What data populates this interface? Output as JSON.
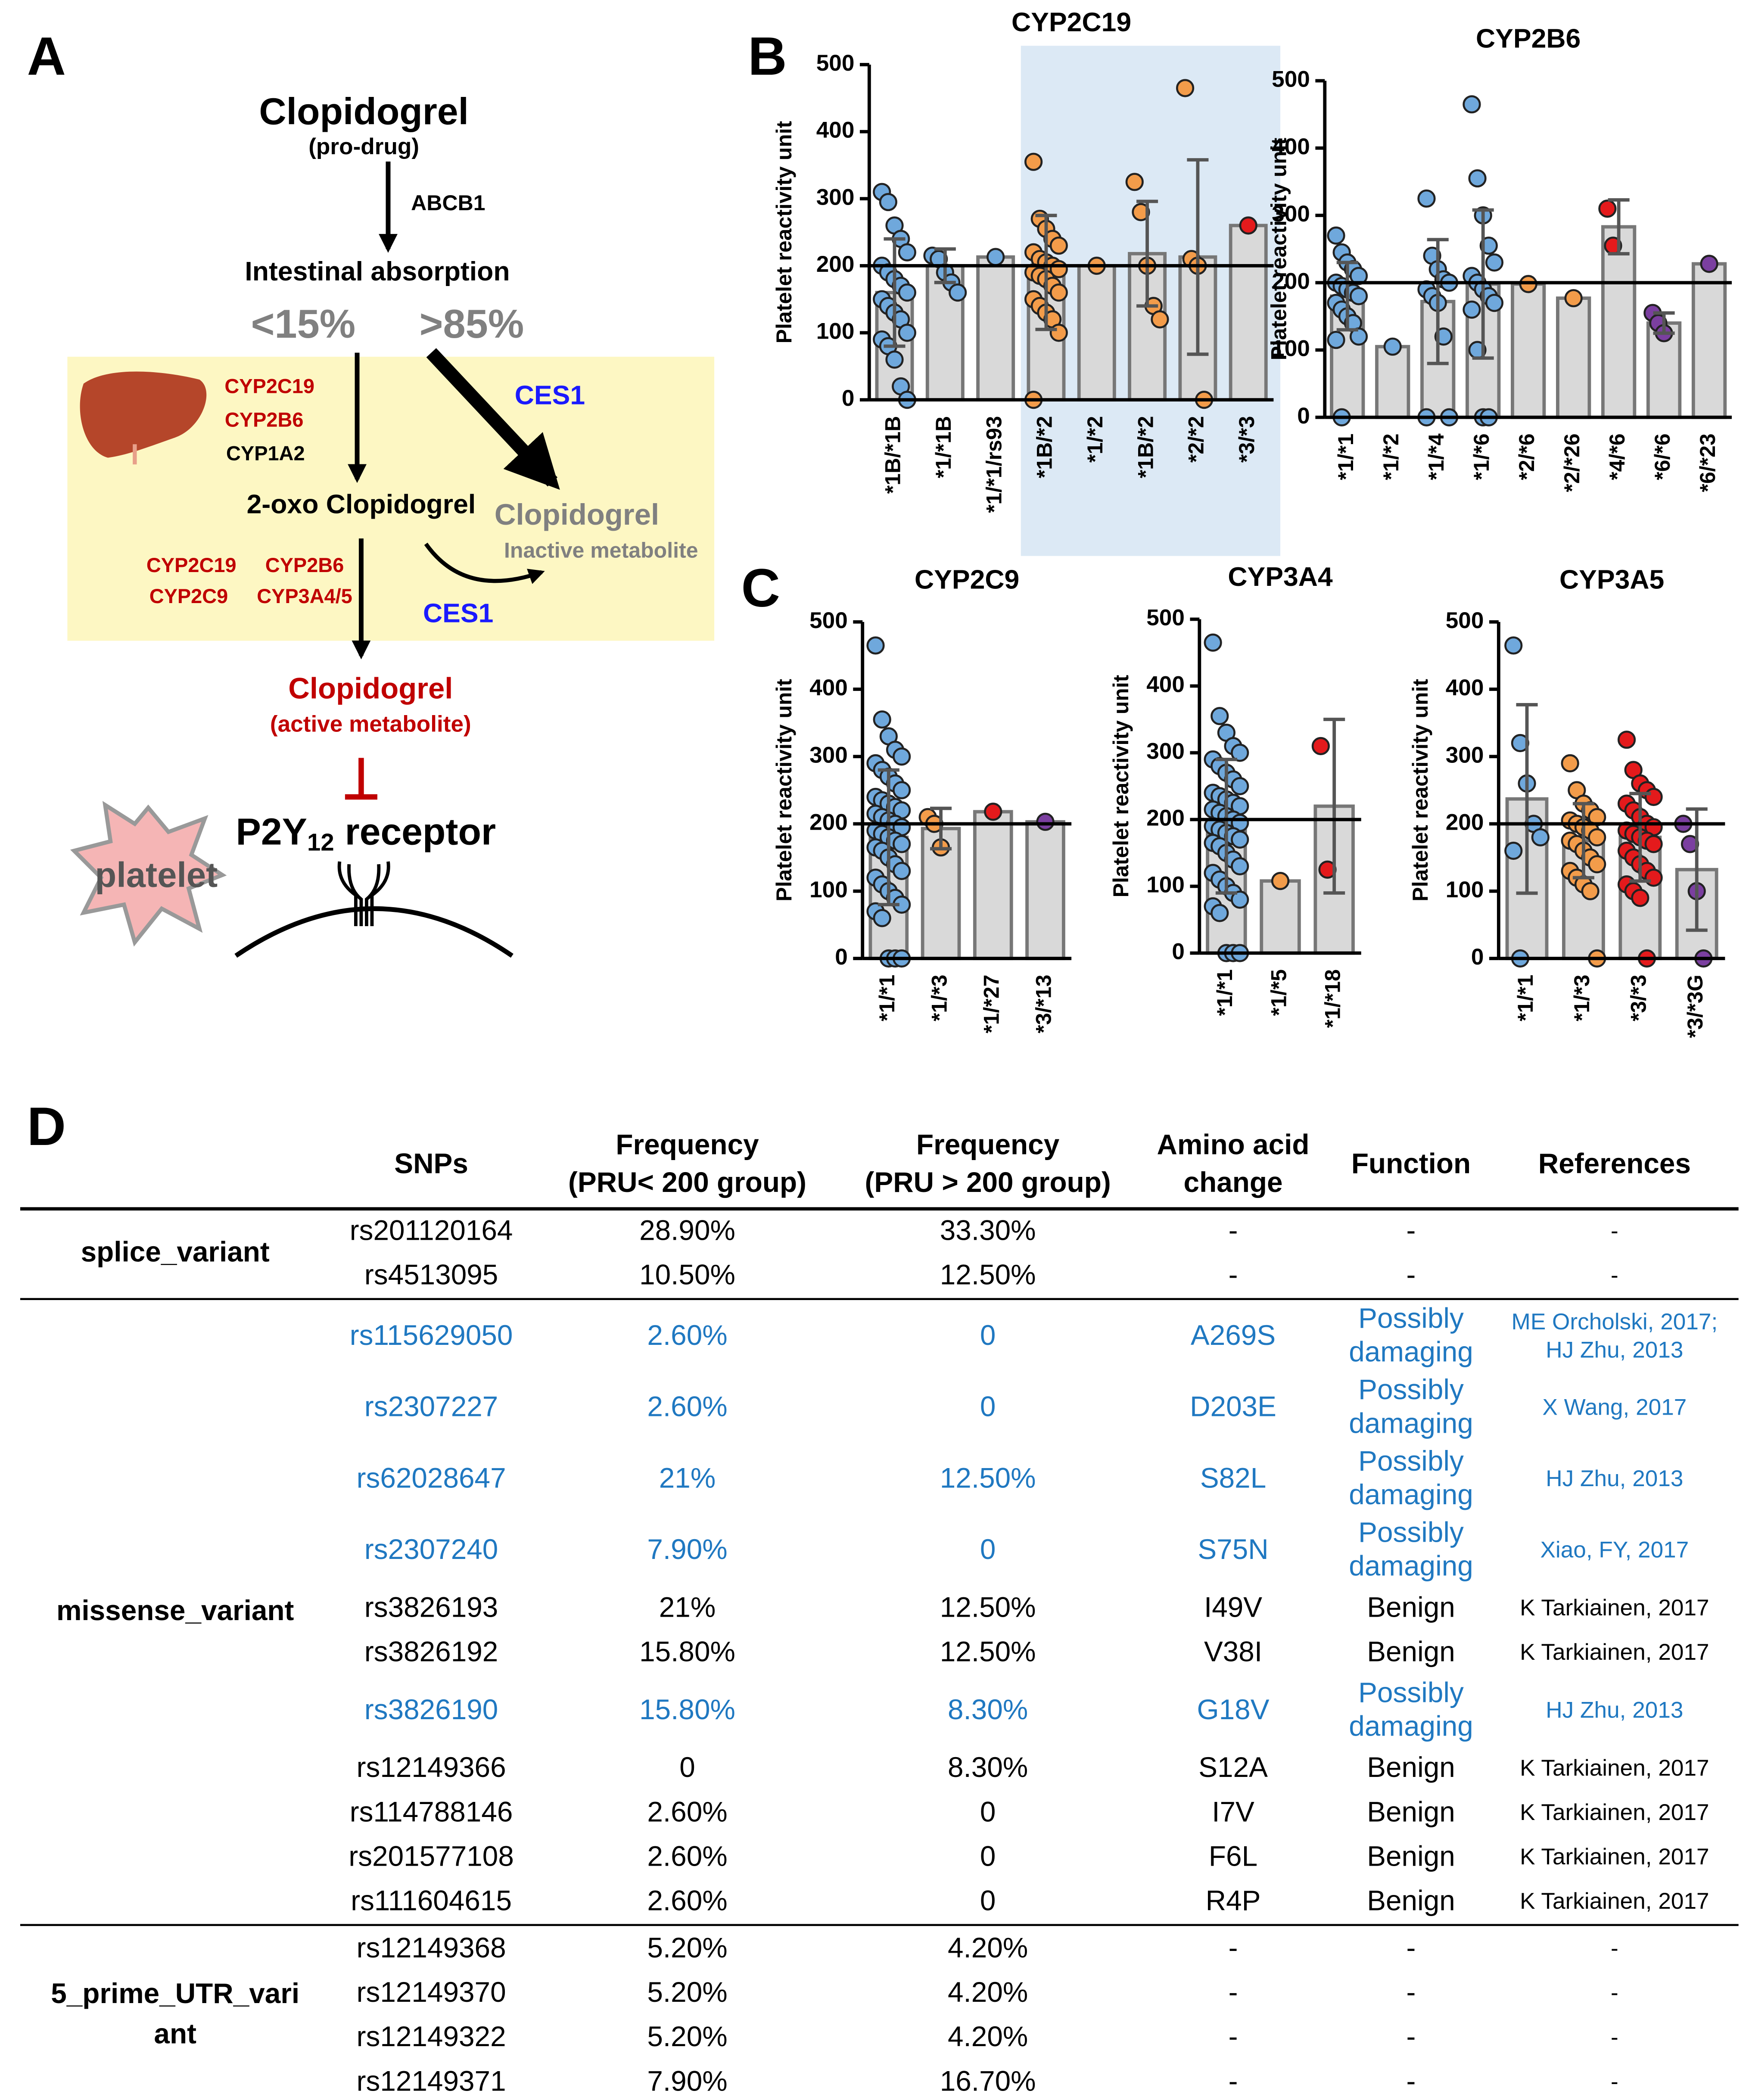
{
  "panel_labels": {
    "a": "A",
    "b": "B",
    "c": "C",
    "d": "D"
  },
  "diagram": {
    "drug": "Clopidogrel",
    "drug_note": "(pro-drug)",
    "transporter": "ABCB1",
    "absorption": "Intestinal absorption",
    "low_fraction": "<15%",
    "high_fraction": ">85%",
    "liver_enzymes": [
      "CYP2C19",
      "CYP2B6",
      "CYP1A2"
    ],
    "esterase_1": "CES1",
    "intermediate": "2-oxo Clopidogrel",
    "inactive": "Clopidogrel",
    "inactive_note": "Inactive metabolite",
    "second_enzymes": [
      "CYP2C19",
      "CYP2B6",
      "CYP2C9",
      "CYP3A4/5"
    ],
    "esterase_2": "CES1",
    "active": "Clopidogrel",
    "active_note": "(active metabolite)",
    "receptor": {
      "base": "P2Y",
      "subscript": "12",
      "suffix": "receptor"
    },
    "cell": "platelet"
  },
  "chart_data": [
    {
      "type": "bar",
      "title": "CYP2C19",
      "y_label": "Platelet reactivity unit",
      "categories": [
        "*1B/*1B",
        "*1/*1B",
        "*1/*1/rs93",
        "*1B/*2",
        "*1/*2",
        "*1B/*2",
        "*2/*2",
        "*3/*3"
      ],
      "values": [
        160,
        200,
        213,
        190,
        200,
        218,
        213,
        260
      ],
      "errors": [
        80,
        25,
        null,
        85,
        null,
        78,
        145,
        null
      ],
      "points": [
        [
          310,
          295,
          260,
          240,
          220,
          200,
          190,
          180,
          170,
          160,
          150,
          140,
          130,
          120,
          100,
          90,
          80,
          60,
          20,
          0
        ],
        [
          215,
          210,
          190,
          175,
          160
        ],
        [
          213
        ],
        [
          355,
          270,
          255,
          240,
          230,
          220,
          210,
          205,
          200,
          195,
          190,
          185,
          180,
          170,
          160,
          150,
          140,
          130,
          120,
          100,
          0
        ],
        [
          200
        ],
        [
          325,
          280,
          200,
          140,
          120
        ],
        [
          465,
          210,
          200,
          0
        ],
        [
          260
        ]
      ],
      "point_colors": [
        "#6fa8dc",
        "#6fa8dc",
        "#6fa8dc",
        "#f39c4a",
        "#f39c4a",
        "#f39c4a",
        "#f39c4a",
        "#e41a1c"
      ],
      "bar_color": "#d9d9d9",
      "reference_line": 200,
      "ylim": [
        0,
        500
      ],
      "yticks": [
        0,
        100,
        200,
        300,
        400,
        500
      ],
      "highlight": [
        3,
        7
      ],
      "highlight_color": "#dce9f5"
    },
    {
      "type": "bar",
      "title": "CYP2B6",
      "y_label": "Platelet reactivity unit",
      "categories": [
        "*1/*1",
        "*1/*2",
        "*1/*4",
        "*1/*6",
        "*2/*6",
        "*2/*26",
        "*4/*6",
        "*6/*6",
        "*6/*23"
      ],
      "values": [
        180,
        105,
        172,
        198,
        198,
        177,
        283,
        140,
        228
      ],
      "errors": [
        50,
        null,
        92,
        110,
        null,
        null,
        40,
        15,
        null
      ],
      "points": [
        [
          270,
          245,
          230,
          220,
          210,
          200,
          195,
          190,
          185,
          180,
          170,
          160,
          150,
          140,
          120,
          115,
          0
        ],
        [
          105
        ],
        [
          325,
          240,
          220,
          205,
          200,
          190,
          180,
          170,
          120,
          0,
          0
        ],
        [
          465,
          355,
          300,
          255,
          230,
          210,
          200,
          190,
          180,
          170,
          160,
          100,
          0,
          0
        ],
        [
          198
        ],
        [
          177
        ],
        [
          310,
          255
        ],
        [
          155,
          140,
          125
        ],
        [
          228
        ]
      ],
      "point_colors": [
        "#6fa8dc",
        "#6fa8dc",
        "#6fa8dc",
        "#6fa8dc",
        "#f39c4a",
        "#f39c4a",
        "#e41a1c",
        "#7b3fa0",
        "#7b3fa0"
      ],
      "bar_color": "#d9d9d9",
      "reference_line": 200,
      "ylim": [
        0,
        500
      ],
      "yticks": [
        0,
        100,
        200,
        300,
        400,
        500
      ]
    },
    {
      "type": "bar",
      "title": "CYP2C9",
      "y_label": "Platelet reactivity unit",
      "categories": [
        "*1/*1",
        "*1/*3",
        "*1/*27",
        "*3/*13"
      ],
      "values": [
        180,
        193,
        218,
        203
      ],
      "errors": [
        100,
        30,
        null,
        null
      ],
      "points": [
        [
          465,
          355,
          330,
          310,
          300,
          290,
          280,
          270,
          260,
          250,
          240,
          235,
          230,
          225,
          220,
          215,
          210,
          205,
          200,
          195,
          190,
          185,
          180,
          175,
          170,
          165,
          160,
          150,
          140,
          130,
          120,
          110,
          100,
          90,
          80,
          70,
          60,
          0,
          0,
          0
        ],
        [
          210,
          200,
          165
        ],
        [
          218
        ],
        [
          203
        ]
      ],
      "point_colors": [
        "#6fa8dc",
        "#f39c4a",
        "#e41a1c",
        "#7b3fa0"
      ],
      "bar_color": "#d9d9d9",
      "reference_line": 200,
      "ylim": [
        0,
        500
      ],
      "yticks": [
        0,
        100,
        200,
        300,
        400,
        500
      ]
    },
    {
      "type": "bar",
      "title": "CYP3A4",
      "y_label": "Platelet reactivity unit",
      "categories": [
        "*1/*1",
        "*1/*5",
        "*1/*18"
      ],
      "values": [
        190,
        108,
        220
      ],
      "errors": [
        100,
        null,
        130
      ],
      "points": [
        [
          465,
          355,
          330,
          310,
          300,
          290,
          280,
          270,
          260,
          250,
          240,
          235,
          230,
          225,
          220,
          215,
          210,
          205,
          200,
          195,
          190,
          185,
          180,
          175,
          170,
          165,
          160,
          150,
          140,
          130,
          120,
          110,
          100,
          90,
          80,
          70,
          60,
          0,
          0,
          0
        ],
        [
          108
        ],
        [
          310,
          125
        ]
      ],
      "point_colors": [
        "#6fa8dc",
        "#f39c4a",
        "#e41a1c"
      ],
      "bar_color": "#d9d9d9",
      "reference_line": 200,
      "ylim": [
        0,
        500
      ],
      "yticks": [
        0,
        100,
        200,
        300,
        400,
        500
      ]
    },
    {
      "type": "bar",
      "title": "CYP3A5",
      "y_label": "Platelet reactivity unit",
      "categories": [
        "*1/*1",
        "*1/*3",
        "*3/*3",
        "*3/*3G"
      ],
      "values": [
        237,
        175,
        180,
        132
      ],
      "errors": [
        140,
        55,
        65,
        90
      ],
      "points": [
        [
          465,
          320,
          260,
          200,
          180,
          160,
          0
        ],
        [
          290,
          250,
          230,
          220,
          210,
          205,
          200,
          195,
          190,
          180,
          175,
          170,
          160,
          150,
          140,
          130,
          120,
          110,
          100,
          0
        ],
        [
          325,
          280,
          260,
          250,
          240,
          230,
          220,
          210,
          200,
          195,
          190,
          185,
          180,
          175,
          170,
          160,
          150,
          140,
          130,
          120,
          110,
          100,
          90,
          0
        ],
        [
          200,
          170,
          100,
          0
        ]
      ],
      "point_colors": [
        "#6fa8dc",
        "#f39c4a",
        "#e41a1c",
        "#7b3fa0"
      ],
      "bar_color": "#d9d9d9",
      "reference_line": 200,
      "ylim": [
        0,
        500
      ],
      "yticks": [
        0,
        100,
        200,
        300,
        400,
        500
      ]
    }
  ],
  "table": {
    "columns": [
      "SNPs",
      [
        "Frequency",
        "(PRU< 200 group)"
      ],
      [
        "Frequency",
        "(PRU > 200 group)"
      ],
      [
        "Amino acid",
        "change"
      ],
      "Function",
      "References"
    ],
    "groups": [
      {
        "label": "splice_variant",
        "rows": [
          {
            "color": "#000000",
            "cells": [
              "rs201120164",
              "28.90%",
              "33.30%",
              "-",
              "-",
              "-"
            ]
          },
          {
            "color": "#000000",
            "cells": [
              "rs4513095",
              "10.50%",
              "12.50%",
              "-",
              "-",
              "-"
            ]
          }
        ]
      },
      {
        "label": "missense_variant",
        "rows": [
          {
            "color": "#1f78c1",
            "cells": [
              "rs115629050",
              "2.60%",
              "0",
              "A269S",
              [
                "Possibly",
                "damaging"
              ],
              [
                "ME Orcholski, 2017;",
                "HJ Zhu, 2013"
              ]
            ]
          },
          {
            "color": "#1f78c1",
            "cells": [
              "rs2307227",
              "2.60%",
              "0",
              "D203E",
              [
                "Possibly",
                "damaging"
              ],
              "X Wang, 2017"
            ]
          },
          {
            "color": "#1f78c1",
            "cells": [
              "rs62028647",
              "21%",
              "12.50%",
              "S82L",
              [
                "Possibly",
                "damaging"
              ],
              "HJ Zhu, 2013"
            ]
          },
          {
            "color": "#1f78c1",
            "cells": [
              "rs2307240",
              "7.90%",
              "0",
              "S75N",
              [
                "Possibly",
                "damaging"
              ],
              "Xiao, FY, 2017"
            ]
          },
          {
            "color": "#000000",
            "cells": [
              "rs3826193",
              "21%",
              "12.50%",
              "I49V",
              "Benign",
              "K Tarkiainen, 2017"
            ]
          },
          {
            "color": "#000000",
            "cells": [
              "rs3826192",
              "15.80%",
              "12.50%",
              "V38I",
              "Benign",
              "K Tarkiainen, 2017"
            ]
          },
          {
            "color": "#1f78c1",
            "cells": [
              "rs3826190",
              "15.80%",
              "8.30%",
              "G18V",
              [
                "Possibly",
                "damaging"
              ],
              "HJ Zhu, 2013"
            ]
          },
          {
            "color": "#000000",
            "cells": [
              "rs12149366",
              "0",
              "8.30%",
              "S12A",
              "Benign",
              "K Tarkiainen, 2017"
            ]
          },
          {
            "color": "#000000",
            "cells": [
              "rs114788146",
              "2.60%",
              "0",
              "I7V",
              "Benign",
              "K Tarkiainen, 2017"
            ]
          },
          {
            "color": "#000000",
            "cells": [
              "rs201577108",
              "2.60%",
              "0",
              "F6L",
              "Benign",
              "K Tarkiainen, 2017"
            ]
          },
          {
            "color": "#000000",
            "cells": [
              "rs111604615",
              "2.60%",
              "0",
              "R4P",
              "Benign",
              "K Tarkiainen, 2017"
            ]
          }
        ]
      },
      {
        "label": [
          "5_prime_UTR_vari",
          "ant"
        ],
        "rows": [
          {
            "color": "#000000",
            "cells": [
              "rs12149368",
              "5.20%",
              "4.20%",
              "-",
              "-",
              "-"
            ]
          },
          {
            "color": "#000000",
            "cells": [
              "rs12149370",
              "5.20%",
              "4.20%",
              "-",
              "-",
              "-"
            ]
          },
          {
            "color": "#000000",
            "cells": [
              "rs12149322",
              "5.20%",
              "4.20%",
              "-",
              "-",
              "-"
            ]
          },
          {
            "color": "#000000",
            "cells": [
              "rs12149371",
              "7.90%",
              "16.70%",
              "-",
              "-",
              "-"
            ]
          }
        ]
      }
    ]
  }
}
